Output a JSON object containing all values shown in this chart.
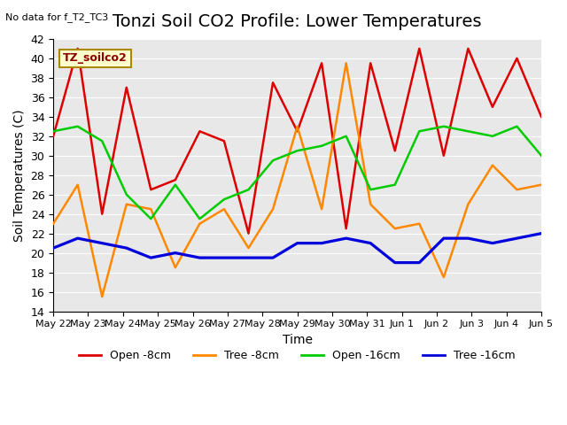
{
  "title": "Tonzi Soil CO2 Profile: Lower Temperatures",
  "subtitle": "No data for f_T2_TC3",
  "ylabel": "Soil Temperatures (C)",
  "xlabel": "Time",
  "legend_label": "TZ_soilco2",
  "ylim": [
    14,
    42
  ],
  "yticks": [
    14,
    16,
    18,
    20,
    22,
    24,
    26,
    28,
    30,
    32,
    34,
    36,
    38,
    40,
    42
  ],
  "x_labels": [
    "May 22",
    "May 23",
    "May 24",
    "May 25",
    "May 26",
    "May 27",
    "May 28",
    "May 29",
    "May 30",
    "May 31",
    "Jun 1",
    "Jun 2",
    "Jun 3",
    "Jun 4",
    "Jun 5"
  ],
  "open_8cm": [
    32.0,
    41.0,
    24.0,
    37.0,
    26.5,
    27.5,
    32.5,
    31.5,
    22.0,
    37.5,
    32.5,
    39.5,
    22.5,
    39.5,
    30.5,
    41.0,
    30.0,
    41.0,
    35.0,
    40.0,
    34.0
  ],
  "tree_8cm": [
    23.0,
    27.0,
    15.5,
    25.0,
    24.5,
    18.5,
    23.0,
    24.5,
    20.5,
    24.5,
    33.0,
    24.5,
    39.5,
    25.0,
    22.5,
    23.0,
    17.5,
    25.0,
    29.0,
    26.5,
    27.0
  ],
  "open_16cm": [
    32.5,
    33.0,
    31.5,
    26.0,
    23.5,
    27.0,
    23.5,
    25.5,
    26.5,
    29.5,
    30.5,
    31.0,
    32.0,
    26.5,
    27.0,
    32.5,
    33.0,
    32.5,
    32.0,
    33.0,
    30.0
  ],
  "tree_16cm": [
    20.5,
    21.5,
    21.0,
    20.5,
    19.5,
    20.0,
    19.5,
    19.5,
    19.5,
    19.5,
    21.0,
    21.0,
    21.5,
    21.0,
    19.0,
    19.0,
    21.5,
    21.5,
    21.0,
    21.5,
    22.0
  ],
  "colors": {
    "open_8cm": "#dd0000",
    "tree_8cm": "#ff8800",
    "open_16cm": "#00cc00",
    "tree_16cm": "#0000dd"
  },
  "legend_items": [
    "Open -8cm",
    "Tree -8cm",
    "Open -16cm",
    "Tree -16cm"
  ],
  "plot_bg": "#e8e8e8",
  "title_fontsize": 14,
  "label_fontsize": 10
}
